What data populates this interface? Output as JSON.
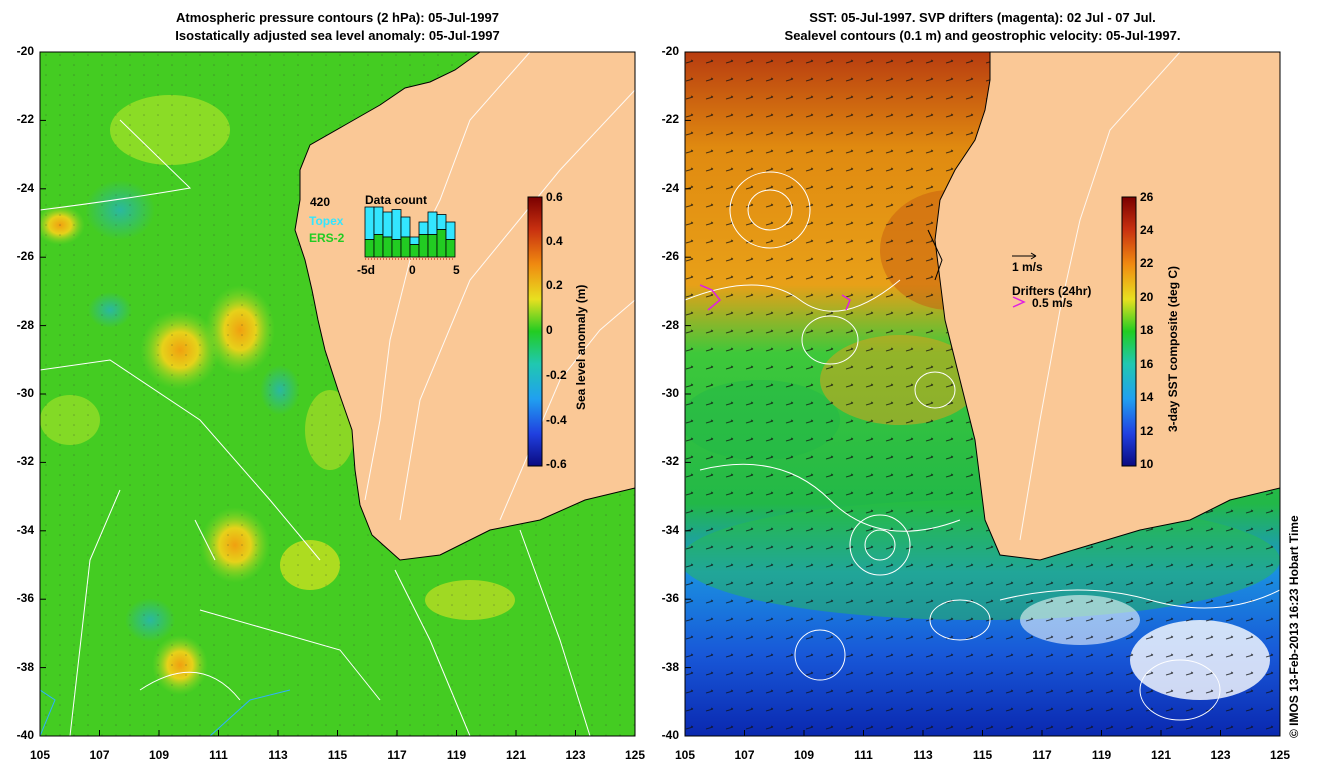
{
  "left_panel": {
    "title_line1": "Atmospheric pressure contours (2 hPa): 05-Jul-1997",
    "title_line2": "Isostatically adjusted sea level anomaly: 05-Jul-1997",
    "colorbar": {
      "label": "Sea level anomaly (m)",
      "ticks": [
        "0.6",
        "0.4",
        "0.2",
        "0",
        "-0.2",
        "-0.4",
        "-0.6"
      ],
      "range": [
        -0.6,
        0.6
      ]
    },
    "data_count": {
      "title": "Data count",
      "max_label": "420",
      "topex_label": "Topex",
      "ers2_label": "ERS-2",
      "x_ticks": [
        "-5d",
        "0",
        "5"
      ],
      "topex_color": "#33e6ff",
      "ers2_color": "#22cc22",
      "topex_counts": [
        0.65,
        0.55,
        0.5,
        0.6,
        0.4,
        0.15,
        0.25,
        0.45,
        0.3,
        0.35
      ],
      "ers2_counts": [
        0.35,
        0.45,
        0.4,
        0.35,
        0.4,
        0.25,
        0.45,
        0.45,
        0.55,
        0.35
      ]
    }
  },
  "right_panel": {
    "title_line1": "SST: 05-Jul-1997. SVP drifters (magenta): 02 Jul - 07 Jul.",
    "title_line2": "Sealevel contours (0.1 m) and geostrophic velocity: 05-Jul-1997.",
    "colorbar": {
      "label": "3-day SST composite (deg C)",
      "ticks": [
        "26",
        "24",
        "22",
        "20",
        "18",
        "16",
        "14",
        "12",
        "10"
      ],
      "range": [
        10,
        26
      ]
    },
    "velocity_scale_label": "1 m/s",
    "drifters_label": "Drifters (24hr)",
    "drifter_scale_label": "0.5 m/s",
    "drifter_color": "#e020e0"
  },
  "axes": {
    "lat_labels": [
      "-20",
      "-22",
      "-24",
      "-26",
      "-28",
      "-30",
      "-32",
      "-34",
      "-36",
      "-38",
      "-40"
    ],
    "lon_labels": [
      "105",
      "107",
      "109",
      "111",
      "113",
      "115",
      "117",
      "119",
      "121",
      "123",
      "125"
    ],
    "lat_range": [
      -40,
      -20
    ],
    "lon_range": [
      105,
      125
    ]
  },
  "colors": {
    "land": "#fac896",
    "ocean_green": "#22cc22",
    "warm_sst": "#e08a10",
    "cold_sst": "#1040d0"
  },
  "footer": "© IMOS 13-Feb-2013 16:23 Hobart Time"
}
